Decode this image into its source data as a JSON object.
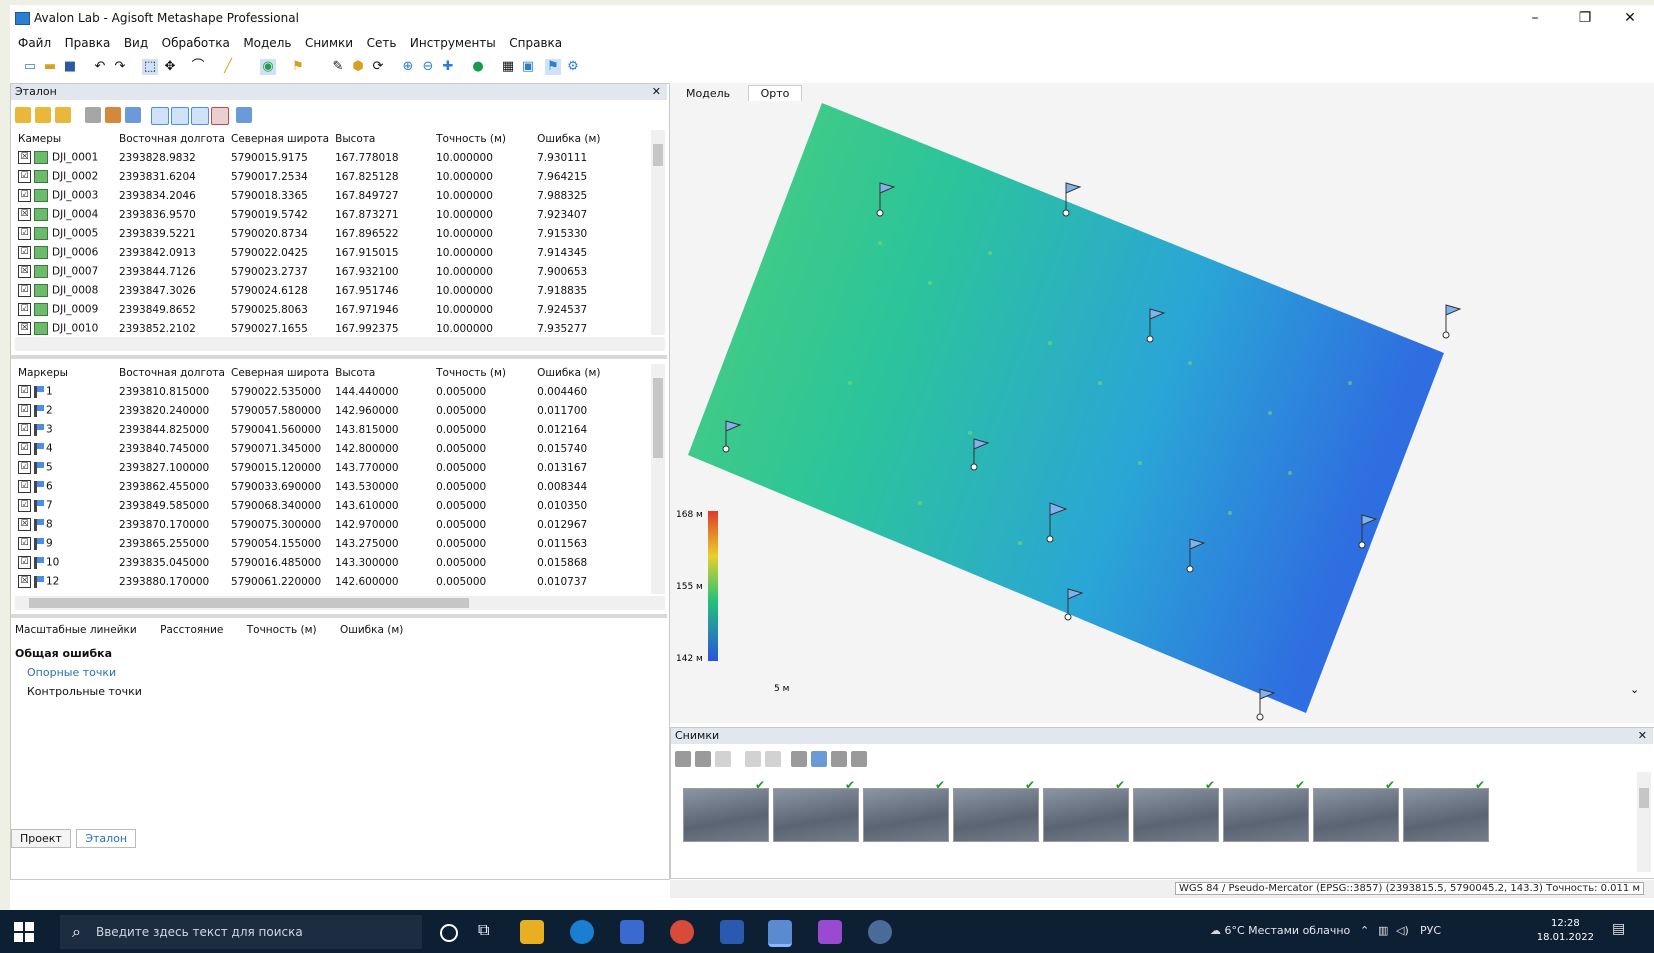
{
  "window": {
    "title": "Avalon Lab - Agisoft Metashape Professional",
    "min": "–",
    "max": "❐",
    "close": "✕"
  },
  "menu": [
    "Файл",
    "Правка",
    "Вид",
    "Обработка",
    "Модель",
    "Снимки",
    "Сеть",
    "Инструменты",
    "Справка"
  ],
  "reference": {
    "panel_title": "Эталон",
    "cameras_headers": [
      "Камеры",
      "Восточная долгота",
      "Северная широта",
      "Высота",
      "Точность (м)",
      "Ошибка (м)"
    ],
    "cameras": [
      {
        "checked": "☒",
        "name": "DJI_0001",
        "east": "2393828.9832",
        "north": "5790015.9175",
        "alt": "167.778018",
        "acc": "10.000000",
        "err": "7.930111"
      },
      {
        "checked": "☑",
        "name": "DJI_0002",
        "east": "2393831.6204",
        "north": "5790017.2534",
        "alt": "167.825128",
        "acc": "10.000000",
        "err": "7.964215"
      },
      {
        "checked": "☑",
        "name": "DJI_0003",
        "east": "2393834.2046",
        "north": "5790018.3365",
        "alt": "167.849727",
        "acc": "10.000000",
        "err": "7.988325"
      },
      {
        "checked": "☒",
        "name": "DJI_0004",
        "east": "2393836.9570",
        "north": "5790019.5742",
        "alt": "167.873271",
        "acc": "10.000000",
        "err": "7.923407"
      },
      {
        "checked": "☑",
        "name": "DJI_0005",
        "east": "2393839.5221",
        "north": "5790020.8734",
        "alt": "167.896522",
        "acc": "10.000000",
        "err": "7.915330"
      },
      {
        "checked": "☑",
        "name": "DJI_0006",
        "east": "2393842.0913",
        "north": "5790022.0425",
        "alt": "167.915015",
        "acc": "10.000000",
        "err": "7.914345"
      },
      {
        "checked": "☒",
        "name": "DJI_0007",
        "east": "2393844.7126",
        "north": "5790023.2737",
        "alt": "167.932100",
        "acc": "10.000000",
        "err": "7.900653"
      },
      {
        "checked": "☑",
        "name": "DJI_0008",
        "east": "2393847.3026",
        "north": "5790024.6128",
        "alt": "167.951746",
        "acc": "10.000000",
        "err": "7.918835"
      },
      {
        "checked": "☑",
        "name": "DJI_0009",
        "east": "2393849.8652",
        "north": "5790025.8063",
        "alt": "167.971946",
        "acc": "10.000000",
        "err": "7.924537"
      },
      {
        "checked": "☒",
        "name": "DJI_0010",
        "east": "2393852.2102",
        "north": "5790027.1655",
        "alt": "167.992375",
        "acc": "10.000000",
        "err": "7.935277"
      }
    ],
    "markers_headers": [
      "Маркеры",
      "Восточная долгота",
      "Северная широта",
      "Высота",
      "Точность (м)",
      "Ошибка (м)"
    ],
    "markers": [
      {
        "checked": "☑",
        "name": "1",
        "east": "2393810.815000",
        "north": "5790022.535000",
        "alt": "144.440000",
        "acc": "0.005000",
        "err": "0.004460"
      },
      {
        "checked": "☑",
        "name": "2",
        "east": "2393820.240000",
        "north": "5790057.580000",
        "alt": "142.960000",
        "acc": "0.005000",
        "err": "0.011700"
      },
      {
        "checked": "☑",
        "name": "3",
        "east": "2393844.825000",
        "north": "5790041.560000",
        "alt": "143.815000",
        "acc": "0.005000",
        "err": "0.012164"
      },
      {
        "checked": "☑",
        "name": "4",
        "east": "2393840.745000",
        "north": "5790071.345000",
        "alt": "142.800000",
        "acc": "0.005000",
        "err": "0.015740"
      },
      {
        "checked": "☑",
        "name": "5",
        "east": "2393827.100000",
        "north": "5790015.120000",
        "alt": "143.770000",
        "acc": "0.005000",
        "err": "0.013167"
      },
      {
        "checked": "☑",
        "name": "6",
        "east": "2393862.455000",
        "north": "5790033.690000",
        "alt": "143.530000",
        "acc": "0.005000",
        "err": "0.008344"
      },
      {
        "checked": "☑",
        "name": "7",
        "east": "2393849.585000",
        "north": "5790068.340000",
        "alt": "143.610000",
        "acc": "0.005000",
        "err": "0.010350"
      },
      {
        "checked": "☒",
        "name": "8",
        "east": "2393870.170000",
        "north": "5790075.300000",
        "alt": "142.970000",
        "acc": "0.005000",
        "err": "0.012967"
      },
      {
        "checked": "☑",
        "name": "9",
        "east": "2393865.255000",
        "north": "5790054.155000",
        "alt": "143.275000",
        "acc": "0.005000",
        "err": "0.011563"
      },
      {
        "checked": "☑",
        "name": "10",
        "east": "2393835.045000",
        "north": "5790016.485000",
        "alt": "143.300000",
        "acc": "0.005000",
        "err": "0.015868"
      },
      {
        "checked": "☒",
        "name": "12",
        "east": "2393880.170000",
        "north": "5790061.220000",
        "alt": "142.600000",
        "acc": "0.005000",
        "err": "0.010737"
      }
    ],
    "scalebar_headers": [
      "Масштабные линейки",
      "Расстояние",
      "Точность (м)",
      "Ошибка (м)"
    ],
    "tree_root": "Общая ошибка",
    "tree_items": [
      "Опорные точки",
      "Контрольные точки"
    ]
  },
  "bottom_tabs": [
    "Проект",
    "Эталон"
  ],
  "view_tabs": [
    "Модель",
    "Орто"
  ],
  "legend": {
    "max": "168 м",
    "mid": "155 м",
    "min": "142 м",
    "scale": "5 м"
  },
  "photos": {
    "title": "Снимки",
    "count": 9
  },
  "status": "WGS 84 / Pseudo-Mercator (EPSG::3857) (2393815.5, 5790045.2, 143.3)  Точность: 0.011 м",
  "taskbar": {
    "search_placeholder": "Введите здесь текст для поиска",
    "weather": "6°C Местами облачно",
    "lang": "РУС",
    "time": "12:28",
    "date": "18.01.2022"
  },
  "colors": {
    "accent": "#2a7fd0",
    "dem_high": "#e03b2a",
    "dem_mid": "#22c27a",
    "dem_low": "#2a52e0"
  }
}
